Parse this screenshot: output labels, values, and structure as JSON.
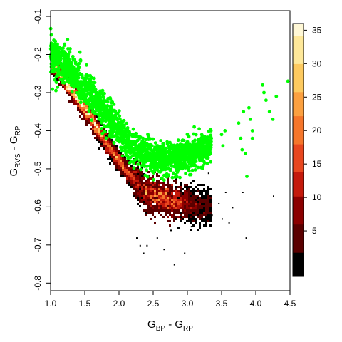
{
  "chart_data": {
    "type": "heatmap",
    "title": "",
    "xlabel": {
      "main": "G",
      "sub1": "BP",
      "sep": " - G",
      "sub2": "RP"
    },
    "ylabel": {
      "main": "G",
      "sub1": "RVS",
      "sep": " - G",
      "sub2": "RP"
    },
    "xlim": [
      1.0,
      4.5
    ],
    "ylim": [
      -0.82,
      -0.085
    ],
    "x_ticks": [
      "1.0",
      "1.5",
      "2.0",
      "2.5",
      "3.0",
      "3.5",
      "4.0",
      "4.5"
    ],
    "y_ticks": [
      "-0.1",
      "-0.2",
      "-0.3",
      "-0.4",
      "-0.5",
      "-0.6",
      "-0.7",
      "-0.8"
    ],
    "grid": false,
    "colorbar": {
      "ticks": [
        "5",
        "10",
        "15",
        "20",
        "25",
        "30",
        "35"
      ],
      "range": [
        0,
        36
      ],
      "low_color": "#000000",
      "colors": [
        "#000000",
        "#5a0000",
        "#8b0000",
        "#c41a0c",
        "#e8471f",
        "#f5762b",
        "#fba040",
        "#fdca60",
        "#fee89a",
        "#fff8d6"
      ]
    },
    "density_ridge": [
      {
        "x": 1.0,
        "y": -0.215,
        "counts": 18
      },
      {
        "x": 1.2,
        "y": -0.265,
        "counts": 22
      },
      {
        "x": 1.4,
        "y": -0.315,
        "counts": 25
      },
      {
        "x": 1.6,
        "y": -0.37,
        "counts": 22
      },
      {
        "x": 1.8,
        "y": -0.43,
        "counts": 16
      },
      {
        "x": 2.0,
        "y": -0.48,
        "counts": 13
      },
      {
        "x": 2.2,
        "y": -0.525,
        "counts": 13
      },
      {
        "x": 2.4,
        "y": -0.56,
        "counts": 20
      },
      {
        "x": 2.6,
        "y": -0.575,
        "counts": 28
      },
      {
        "x": 2.8,
        "y": -0.585,
        "counts": 22
      },
      {
        "x": 3.0,
        "y": -0.59,
        "counts": 12
      },
      {
        "x": 3.2,
        "y": -0.6,
        "counts": 5
      }
    ],
    "series": [
      {
        "color": "#00ff00",
        "ridge": [
          {
            "x": 1.0,
            "y": -0.2
          },
          {
            "x": 1.3,
            "y": -0.245
          },
          {
            "x": 1.6,
            "y": -0.31
          },
          {
            "x": 1.9,
            "y": -0.38
          },
          {
            "x": 2.2,
            "y": -0.445
          },
          {
            "x": 2.5,
            "y": -0.47
          },
          {
            "x": 2.8,
            "y": -0.475
          },
          {
            "x": 3.1,
            "y": -0.46
          },
          {
            "x": 3.3,
            "y": -0.44
          }
        ],
        "scattered_points": [
          {
            "x": 3.1,
            "y": -0.39
          },
          {
            "x": 3.35,
            "y": -0.42
          },
          {
            "x": 3.5,
            "y": -0.41
          },
          {
            "x": 3.52,
            "y": -0.44
          },
          {
            "x": 3.55,
            "y": -0.4
          },
          {
            "x": 3.75,
            "y": -0.38
          },
          {
            "x": 3.78,
            "y": -0.42
          },
          {
            "x": 3.8,
            "y": -0.45
          },
          {
            "x": 3.82,
            "y": -0.35
          },
          {
            "x": 3.85,
            "y": -0.46
          },
          {
            "x": 3.87,
            "y": -0.52
          },
          {
            "x": 3.9,
            "y": -0.34
          },
          {
            "x": 3.92,
            "y": -0.37
          },
          {
            "x": 3.95,
            "y": -0.42
          },
          {
            "x": 3.95,
            "y": -0.4
          },
          {
            "x": 4.1,
            "y": -0.28
          },
          {
            "x": 4.12,
            "y": -0.3
          },
          {
            "x": 4.15,
            "y": -0.32
          },
          {
            "x": 4.2,
            "y": -0.35
          },
          {
            "x": 4.25,
            "y": -0.37
          },
          {
            "x": 4.3,
            "y": -0.31
          },
          {
            "x": 4.47,
            "y": -0.27
          }
        ]
      }
    ],
    "sparse_points": [
      {
        "x": 2.25,
        "y": -0.68
      },
      {
        "x": 2.3,
        "y": -0.7
      },
      {
        "x": 2.35,
        "y": -0.72
      },
      {
        "x": 2.4,
        "y": -0.7
      },
      {
        "x": 2.55,
        "y": -0.68
      },
      {
        "x": 2.65,
        "y": -0.71
      },
      {
        "x": 2.75,
        "y": -0.66
      },
      {
        "x": 2.8,
        "y": -0.75
      },
      {
        "x": 2.95,
        "y": -0.72
      },
      {
        "x": 3.05,
        "y": -0.65
      },
      {
        "x": 3.35,
        "y": -0.62
      },
      {
        "x": 3.45,
        "y": -0.59
      },
      {
        "x": 3.5,
        "y": -0.63
      },
      {
        "x": 3.6,
        "y": -0.64
      },
      {
        "x": 3.8,
        "y": -0.56
      },
      {
        "x": 3.85,
        "y": -0.68
      },
      {
        "x": 4.25,
        "y": -0.57
      },
      {
        "x": 3.3,
        "y": -0.51
      },
      {
        "x": 3.55,
        "y": -0.56
      },
      {
        "x": 3.65,
        "y": -0.6
      }
    ]
  }
}
